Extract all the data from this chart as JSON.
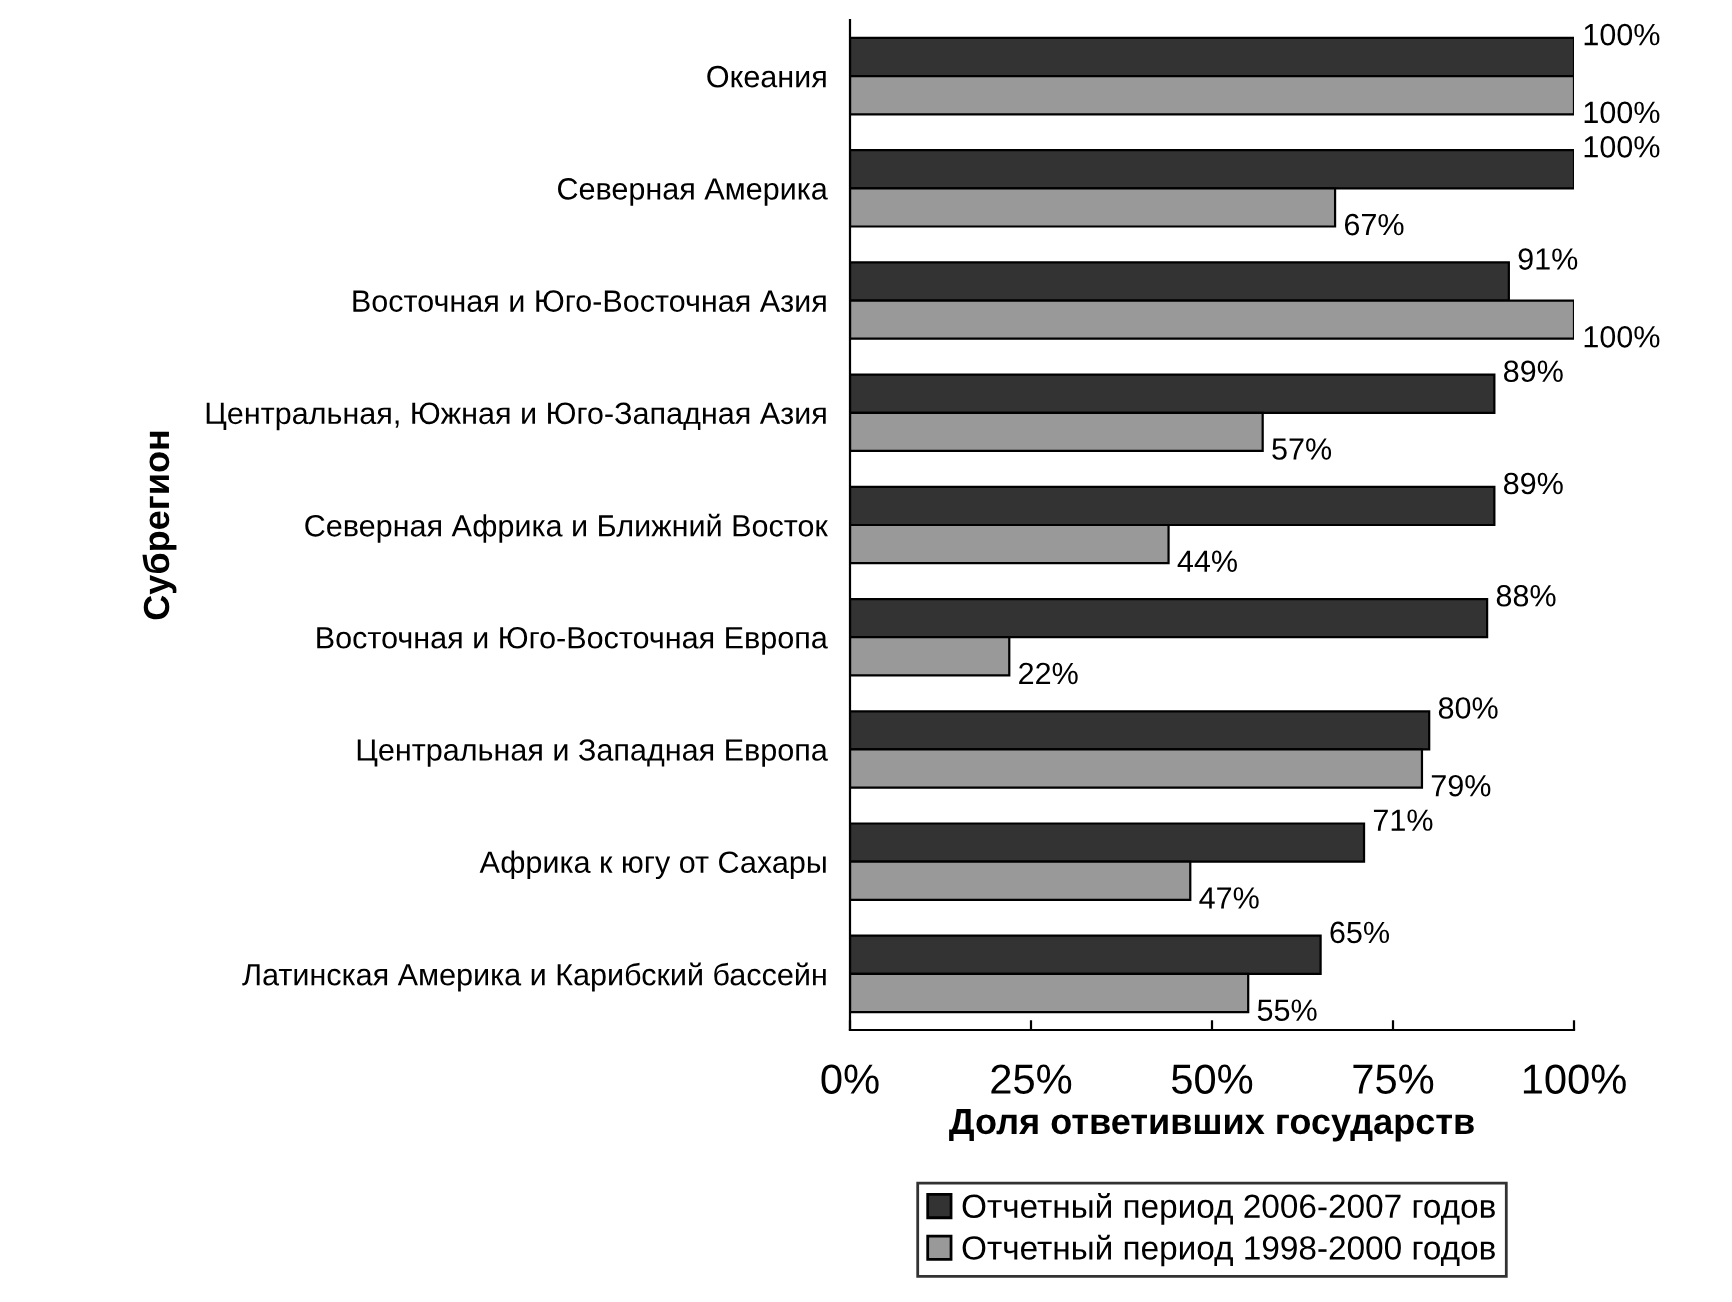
{
  "chart_data": {
    "type": "bar",
    "orientation": "horizontal",
    "xlabel": "Доля ответивших государств",
    "ylabel": "Субрегион",
    "categories": [
      "Океания",
      "Северная Америка",
      "Восточная и Юго-Восточная Азия",
      "Центральная, Южная и Юго-Западная Азия",
      "Северная Африка и Ближний Восток",
      "Восточная и Юго-Восточная Европа",
      "Центральная и Западная Европа",
      "Африка к югу от Сахары",
      "Латинская Америка и Карибский бассейн"
    ],
    "series": [
      {
        "name": "Отчетный период 2006-2007 годов",
        "color": "#333333",
        "values": [
          100,
          100,
          91,
          89,
          89,
          88,
          80,
          71,
          65
        ],
        "value_labels": [
          "100%",
          "100%",
          "91%",
          "89%",
          "89%",
          "88%",
          "80%",
          "71%",
          "65%"
        ]
      },
      {
        "name": "Отчетный период 1998-2000 годов",
        "color": "#999999",
        "values": [
          100,
          67,
          100,
          57,
          44,
          22,
          79,
          47,
          55
        ],
        "value_labels": [
          "100%",
          "67%",
          "100%",
          "57%",
          "44%",
          "22%",
          "79%",
          "47%",
          "55%"
        ]
      }
    ],
    "xlim": [
      0,
      100
    ],
    "xticks": [
      {
        "value": 0,
        "label": "0%"
      },
      {
        "value": 25,
        "label": "25%"
      },
      {
        "value": 50,
        "label": "50%"
      },
      {
        "value": 75,
        "label": "75%"
      },
      {
        "value": 100,
        "label": "100%"
      }
    ],
    "grid": false,
    "legend": "bottom"
  }
}
